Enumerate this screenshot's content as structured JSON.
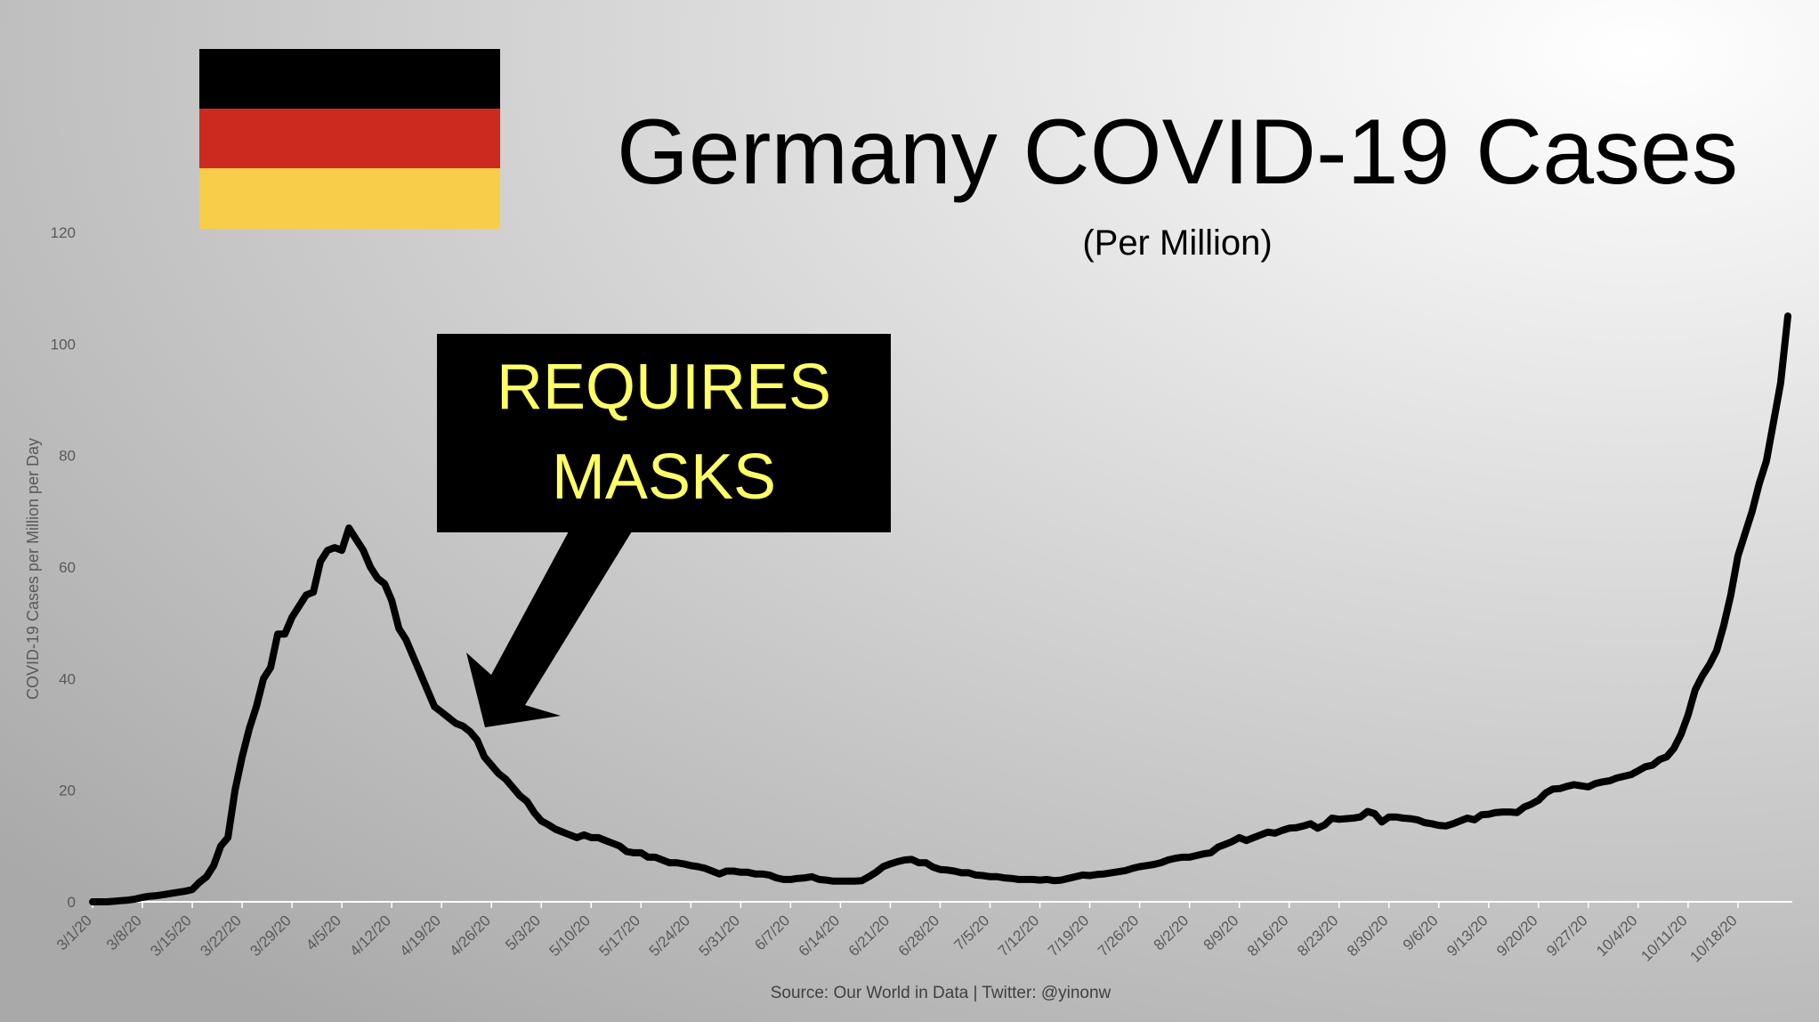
{
  "chart_data": {
    "type": "line",
    "title": "Germany COVID-19 Cases",
    "subtitle": "(Per Million)",
    "y_label": "COVID-19 Cases per Million per Day",
    "source": "Source: Our World in Data | Twitter: @yinonw",
    "annotation": [
      "REQUIRES",
      "MASKS"
    ],
    "color": "#000000",
    "ylim": [
      0,
      120
    ],
    "yticks": [
      0,
      20,
      40,
      60,
      80,
      100,
      120
    ],
    "categories": [
      "3/1/20",
      null,
      null,
      null,
      null,
      null,
      null,
      "3/8/20",
      null,
      null,
      null,
      null,
      null,
      null,
      "3/15/20",
      null,
      null,
      null,
      null,
      null,
      null,
      "3/22/20",
      null,
      null,
      null,
      null,
      null,
      null,
      "3/29/20",
      null,
      null,
      null,
      null,
      null,
      null,
      "4/5/20",
      null,
      null,
      null,
      null,
      null,
      null,
      "4/12/20",
      null,
      null,
      null,
      null,
      null,
      null,
      "4/19/20",
      null,
      null,
      null,
      null,
      null,
      null,
      "4/26/20",
      null,
      null,
      null,
      null,
      null,
      null,
      "5/3/20",
      null,
      null,
      null,
      null,
      null,
      null,
      "5/10/20",
      null,
      null,
      null,
      null,
      null,
      null,
      "5/17/20",
      null,
      null,
      null,
      null,
      null,
      null,
      "5/24/20",
      null,
      null,
      null,
      null,
      null,
      null,
      "5/31/20",
      null,
      null,
      null,
      null,
      null,
      null,
      "6/7/20",
      null,
      null,
      null,
      null,
      null,
      null,
      "6/14/20",
      null,
      null,
      null,
      null,
      null,
      null,
      "6/21/20",
      null,
      null,
      null,
      null,
      null,
      null,
      "6/28/20",
      null,
      null,
      null,
      null,
      null,
      null,
      "7/5/20",
      null,
      null,
      null,
      null,
      null,
      null,
      "7/12/20",
      null,
      null,
      null,
      null,
      null,
      null,
      "7/19/20",
      null,
      null,
      null,
      null,
      null,
      null,
      "7/26/20",
      null,
      null,
      null,
      null,
      null,
      null,
      "8/2/20",
      null,
      null,
      null,
      null,
      null,
      null,
      "8/9/20",
      null,
      null,
      null,
      null,
      null,
      null,
      "8/16/20",
      null,
      null,
      null,
      null,
      null,
      null,
      "8/23/20",
      null,
      null,
      null,
      null,
      null,
      null,
      "8/30/20",
      null,
      null,
      null,
      null,
      null,
      null,
      "9/6/20",
      null,
      null,
      null,
      null,
      null,
      null,
      "9/13/20",
      null,
      null,
      null,
      null,
      null,
      null,
      "9/20/20",
      null,
      null,
      null,
      null,
      null,
      null,
      "9/27/20",
      null,
      null,
      null,
      null,
      null,
      null,
      "10/4/20",
      null,
      null,
      null,
      null,
      null,
      null,
      "10/11/20",
      null,
      null,
      null,
      null,
      null,
      null,
      "10/18/20",
      null,
      null,
      null,
      null,
      null,
      null,
      null
    ],
    "values": [
      0,
      0,
      0,
      0.1,
      0.2,
      0.3,
      0.5,
      0.8,
      1,
      1.1,
      1.3,
      1.5,
      1.7,
      1.9,
      2.2,
      3.5,
      4.5,
      6.5,
      10,
      11.5,
      20,
      26,
      31,
      35,
      40,
      42,
      48,
      48,
      51,
      53,
      55,
      55.5,
      61,
      63,
      63.5,
      63,
      67,
      65,
      63,
      60,
      58,
      57,
      54,
      49,
      47,
      44,
      41,
      38,
      35,
      34,
      33,
      32,
      31.5,
      30.5,
      29,
      26,
      24.5,
      23,
      22,
      20.5,
      19,
      18,
      16,
      14.5,
      13.8,
      13,
      12.5,
      12,
      11.5,
      12,
      11.5,
      11.5,
      11,
      10.5,
      10,
      9,
      8.8,
      8.8,
      8,
      8,
      7.5,
      7,
      7,
      6.8,
      6.5,
      6.3,
      6,
      5.5,
      5,
      5.5,
      5.5,
      5.3,
      5.3,
      5,
      5,
      4.8,
      4.3,
      4,
      4,
      4.2,
      4.3,
      4.5,
      4,
      3.9,
      3.7,
      3.7,
      3.7,
      3.7,
      3.8,
      4.5,
      5.3,
      6.3,
      6.8,
      7.2,
      7.5,
      7.6,
      7,
      7,
      6.2,
      5.8,
      5.7,
      5.5,
      5.2,
      5.2,
      4.8,
      4.7,
      4.5,
      4.5,
      4.3,
      4.2,
      4,
      4,
      4,
      3.9,
      4,
      3.8,
      3.9,
      4.2,
      4.5,
      4.8,
      4.7,
      4.9,
      5,
      5.2,
      5.4,
      5.6,
      6,
      6.3,
      6.5,
      6.7,
      7,
      7.5,
      7.8,
      8,
      8,
      8.3,
      8.6,
      8.8,
      9.8,
      10.3,
      10.8,
      11.5,
      11,
      11.5,
      12,
      12.5,
      12.3,
      12.8,
      13.2,
      13.3,
      13.6,
      14,
      13.2,
      13.8,
      15,
      14.8,
      14.9,
      15,
      15.2,
      16.2,
      15.8,
      14.3,
      15.2,
      15.2,
      15,
      14.9,
      14.7,
      14.2,
      14,
      13.7,
      13.6,
      14,
      14.5,
      15,
      14.7,
      15.6,
      15.7,
      16,
      16.1,
      16.1,
      16,
      17,
      17.5,
      18.2,
      19.5,
      20.2,
      20.3,
      20.7,
      21,
      20.8,
      20.6,
      21.2,
      21.5,
      21.7,
      22.2,
      22.5,
      22.8,
      23.5,
      24.2,
      24.5,
      25.5,
      26,
      27.5,
      30,
      33.5,
      38,
      40.5,
      42.5,
      45,
      49.5,
      55,
      62,
      66,
      70,
      75,
      79,
      86,
      93,
      105
    ]
  }
}
